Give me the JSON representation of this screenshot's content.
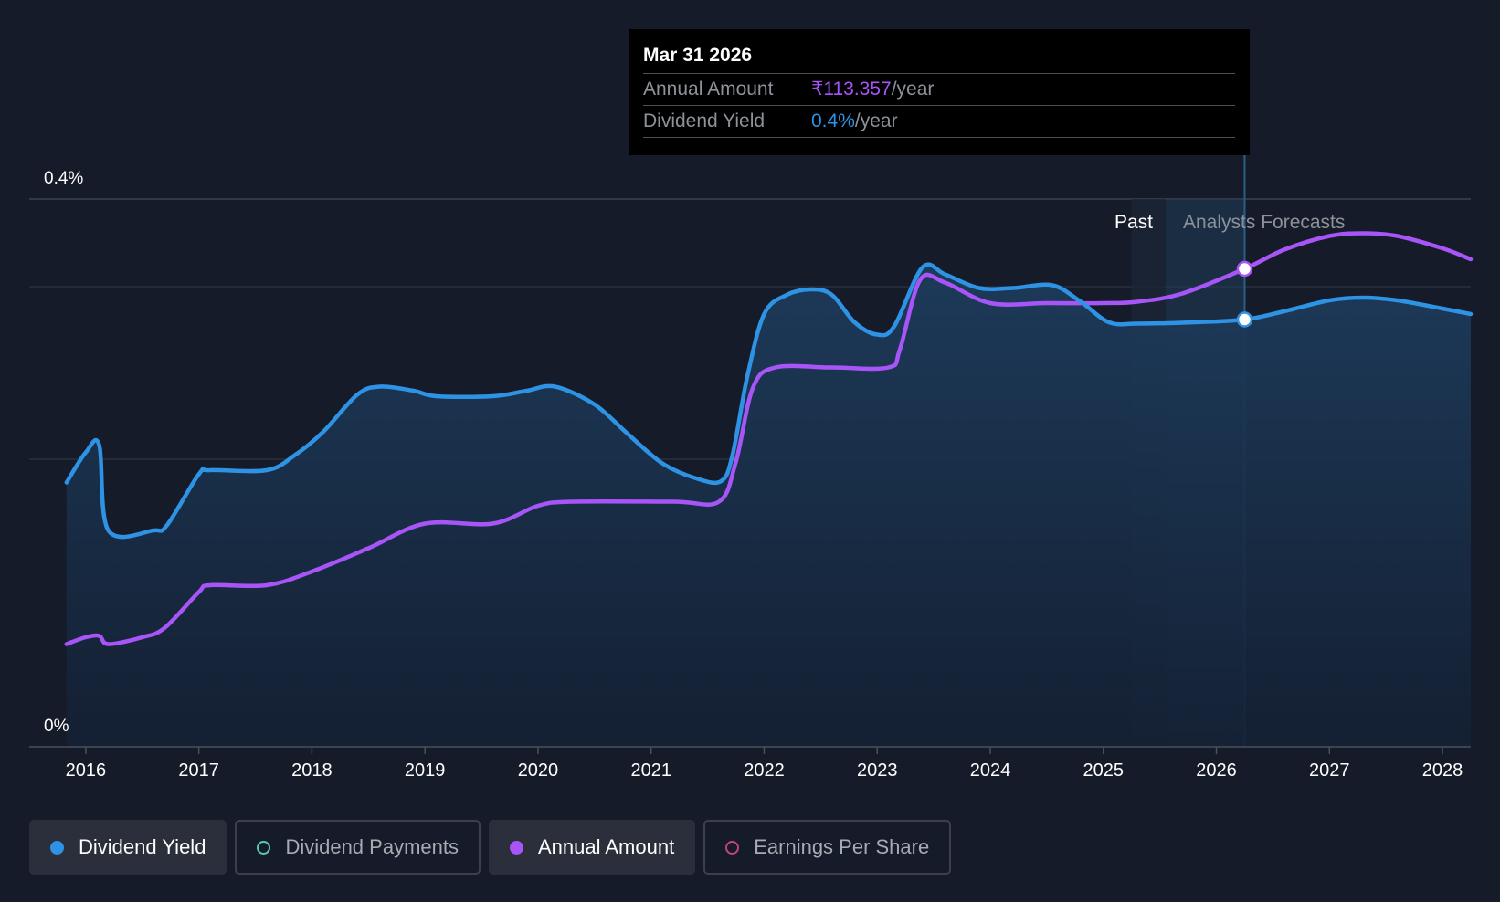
{
  "tooltip": {
    "date": "Mar 31 2026",
    "rows": [
      {
        "label": "Annual Amount",
        "value": "₹113.357",
        "unit": "/year"
      },
      {
        "label": "Dividend Yield",
        "value": "0.4%",
        "unit": "/year"
      }
    ]
  },
  "regions": {
    "past": "Past",
    "forecast": "Analysts Forecasts"
  },
  "legend": [
    {
      "label": "Dividend Yield",
      "color": "#2e93e5",
      "active": true,
      "filled": true
    },
    {
      "label": "Dividend Payments",
      "color": "#5ec8b8",
      "active": false,
      "filled": false
    },
    {
      "label": "Annual Amount",
      "color": "#a855f7",
      "active": true,
      "filled": true
    },
    {
      "label": "Earnings Per Share",
      "color": "#c2457a",
      "active": false,
      "filled": false
    }
  ],
  "colors": {
    "yield": "#2e93e5",
    "amount": "#a855f7",
    "background": "#151b28"
  },
  "chart_data": {
    "type": "line",
    "xlim": [
      2015.5,
      2028.25
    ],
    "ylim": [
      0,
      0.4
    ],
    "ytick_labels": [
      "0.4%",
      "0%"
    ],
    "xticks": [
      2016,
      2017,
      2018,
      2019,
      2020,
      2021,
      2022,
      2023,
      2024,
      2025,
      2026,
      2027,
      2028
    ],
    "grid": true,
    "past_end": 2025.25,
    "forecast_band": [
      2025.55,
      2026.25
    ],
    "highlight_x": 2026.25,
    "series": [
      {
        "name": "Dividend Yield",
        "key": "yield",
        "points": [
          [
            2015.83,
            0.193
          ],
          [
            2016.0,
            0.215
          ],
          [
            2016.12,
            0.22
          ],
          [
            2016.2,
            0.158
          ],
          [
            2016.6,
            0.158
          ],
          [
            2016.72,
            0.162
          ],
          [
            2017.0,
            0.199
          ],
          [
            2017.1,
            0.202
          ],
          [
            2017.6,
            0.202
          ],
          [
            2017.85,
            0.213
          ],
          [
            2018.1,
            0.23
          ],
          [
            2018.4,
            0.257
          ],
          [
            2018.6,
            0.263
          ],
          [
            2018.9,
            0.26
          ],
          [
            2019.1,
            0.256
          ],
          [
            2019.6,
            0.256
          ],
          [
            2019.9,
            0.26
          ],
          [
            2020.15,
            0.263
          ],
          [
            2020.5,
            0.25
          ],
          [
            2020.8,
            0.228
          ],
          [
            2021.1,
            0.207
          ],
          [
            2021.4,
            0.196
          ],
          [
            2021.62,
            0.194
          ],
          [
            2021.72,
            0.213
          ],
          [
            2021.85,
            0.27
          ],
          [
            2022.0,
            0.316
          ],
          [
            2022.2,
            0.33
          ],
          [
            2022.42,
            0.334
          ],
          [
            2022.6,
            0.33
          ],
          [
            2022.8,
            0.31
          ],
          [
            2023.0,
            0.301
          ],
          [
            2023.15,
            0.307
          ],
          [
            2023.4,
            0.35
          ],
          [
            2023.6,
            0.345
          ],
          [
            2023.9,
            0.335
          ],
          [
            2024.2,
            0.335
          ],
          [
            2024.55,
            0.337
          ],
          [
            2024.8,
            0.325
          ],
          [
            2025.05,
            0.31
          ],
          [
            2025.3,
            0.309
          ],
          [
            2025.8,
            0.31
          ],
          [
            2026.25,
            0.312
          ],
          [
            2026.6,
            0.318
          ],
          [
            2027.0,
            0.326
          ],
          [
            2027.3,
            0.328
          ],
          [
            2027.6,
            0.326
          ],
          [
            2028.0,
            0.32
          ],
          [
            2028.25,
            0.316
          ]
        ]
      },
      {
        "name": "Annual Amount",
        "key": "amount",
        "points": [
          [
            2015.83,
            0.075
          ],
          [
            2016.0,
            0.08
          ],
          [
            2016.12,
            0.081
          ],
          [
            2016.2,
            0.075
          ],
          [
            2016.5,
            0.08
          ],
          [
            2016.7,
            0.087
          ],
          [
            2017.0,
            0.113
          ],
          [
            2017.1,
            0.118
          ],
          [
            2017.6,
            0.118
          ],
          [
            2018.0,
            0.128
          ],
          [
            2018.5,
            0.145
          ],
          [
            2019.0,
            0.163
          ],
          [
            2019.6,
            0.163
          ],
          [
            2020.0,
            0.176
          ],
          [
            2020.3,
            0.179
          ],
          [
            2021.2,
            0.179
          ],
          [
            2021.6,
            0.179
          ],
          [
            2021.75,
            0.208
          ],
          [
            2021.9,
            0.262
          ],
          [
            2022.1,
            0.277
          ],
          [
            2022.6,
            0.277
          ],
          [
            2023.1,
            0.277
          ],
          [
            2023.2,
            0.29
          ],
          [
            2023.38,
            0.341
          ],
          [
            2023.6,
            0.339
          ],
          [
            2024.0,
            0.324
          ],
          [
            2024.5,
            0.324
          ],
          [
            2025.0,
            0.324
          ],
          [
            2025.3,
            0.325
          ],
          [
            2025.7,
            0.331
          ],
          [
            2026.25,
            0.349
          ],
          [
            2026.6,
            0.363
          ],
          [
            2027.0,
            0.373
          ],
          [
            2027.3,
            0.375
          ],
          [
            2027.6,
            0.373
          ],
          [
            2028.0,
            0.364
          ],
          [
            2028.25,
            0.356
          ]
        ]
      }
    ]
  }
}
